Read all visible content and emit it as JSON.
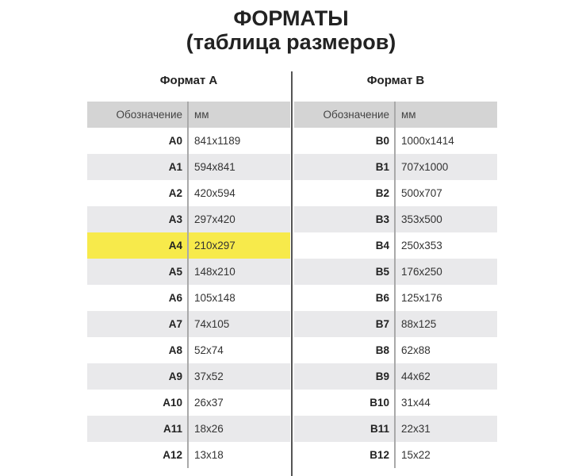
{
  "title": "ФОРМАТЫ",
  "subtitle": "(таблица размеров)",
  "highlight_color": "#f7ea4b",
  "tables": [
    {
      "caption": "Формат А",
      "headers": [
        "Обозначение",
        "мм"
      ],
      "highlighted": "A4",
      "rows": [
        [
          "A0",
          "841x1189"
        ],
        [
          "A1",
          "594x841"
        ],
        [
          "A2",
          "420x594"
        ],
        [
          "A3",
          "297x420"
        ],
        [
          "A4",
          "210x297"
        ],
        [
          "A5",
          "148x210"
        ],
        [
          "A6",
          "105x148"
        ],
        [
          "A7",
          "74x105"
        ],
        [
          "A8",
          "52x74"
        ],
        [
          "A9",
          "37x52"
        ],
        [
          "A10",
          "26x37"
        ],
        [
          "A11",
          "18x26"
        ],
        [
          "A12",
          "13x18"
        ]
      ]
    },
    {
      "caption": "Формат B",
      "headers": [
        "Обозначение",
        "мм"
      ],
      "highlighted": "",
      "rows": [
        [
          "B0",
          "1000x1414"
        ],
        [
          "B1",
          "707x1000"
        ],
        [
          "B2",
          "500x707"
        ],
        [
          "B3",
          "353x500"
        ],
        [
          "B4",
          "250x353"
        ],
        [
          "B5",
          "176x250"
        ],
        [
          "B6",
          "125x176"
        ],
        [
          "B7",
          "88x125"
        ],
        [
          "B8",
          "62x88"
        ],
        [
          "B9",
          "44x62"
        ],
        [
          "B10",
          "31x44"
        ],
        [
          "B11",
          "22x31"
        ],
        [
          "B12",
          "15x22"
        ]
      ]
    }
  ]
}
